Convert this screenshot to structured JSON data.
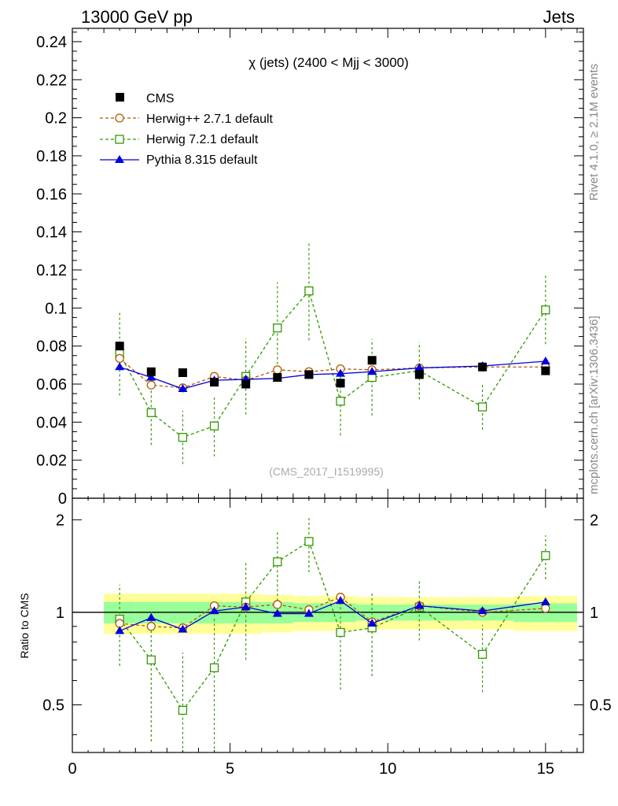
{
  "header": {
    "left": "13000 GeV pp",
    "right": "Jets"
  },
  "side_labels": {
    "rivet": "Rivet 4.1.0, ≥ 2.1M events",
    "mcplots": "mcplots.cern.ch [arXiv:1306.3436]"
  },
  "watermark": "(CMS_2017_I1519995)",
  "colors": {
    "cms": "#000000",
    "herwigpp": "#b35900",
    "herwig7": "#339900",
    "pythia": "#0000dd",
    "band_inner": "#99ff99",
    "band_outer": "#ffff99"
  },
  "chart_data": [
    {
      "type": "scatter",
      "title": "χ (jets) (2400 < Mjj < 3000)",
      "xlabel": "",
      "ylabel": "",
      "xlim": [
        0,
        16.2
      ],
      "ylim": [
        0,
        0.247
      ],
      "yticks": [
        0,
        0.02,
        0.04,
        0.06,
        0.08,
        0.1,
        0.12,
        0.14,
        0.16,
        0.18,
        0.2,
        0.22,
        0.24
      ],
      "ytick_labels": [
        "0",
        "0.02",
        "0.04",
        "0.06",
        "0.08",
        "0.1",
        "0.12",
        "0.14",
        "0.16",
        "0.18",
        "0.2",
        "0.22",
        "0.24"
      ],
      "x": [
        1.5,
        2.5,
        3.5,
        4.5,
        5.5,
        6.5,
        7.5,
        8.5,
        9.5,
        11,
        13,
        15
      ],
      "series": [
        {
          "name": "CMS",
          "key": "cms",
          "marker": "filled-square",
          "values": [
            0.08,
            0.0665,
            0.066,
            0.061,
            0.06,
            0.0635,
            0.065,
            0.0605,
            0.0725,
            0.065,
            0.069,
            0.067
          ]
        },
        {
          "name": "Herwig++ 2.7.1 default",
          "key": "herwigpp",
          "marker": "open-circle",
          "values": [
            0.0735,
            0.0595,
            0.058,
            0.064,
            0.062,
            0.0675,
            0.0665,
            0.068,
            0.0675,
            0.0685,
            0.069,
            0.069
          ]
        },
        {
          "name": "Herwig 7.2.1 default",
          "key": "herwig7",
          "marker": "open-square",
          "values": [
            0.076,
            0.045,
            0.032,
            0.038,
            0.064,
            0.0895,
            0.109,
            0.051,
            0.0635,
            0.067,
            0.048,
            0.099
          ],
          "errors": [
            0.022,
            0.017,
            0.014,
            0.016,
            0.02,
            0.024,
            0.026,
            0.018,
            0.02,
            0.015,
            0.012,
            0.018
          ]
        },
        {
          "name": "Pythia 8.315 default",
          "key": "pythia",
          "marker": "filled-triangle",
          "values": [
            0.069,
            0.0635,
            0.0575,
            0.062,
            0.0625,
            0.063,
            0.065,
            0.0655,
            0.0665,
            0.0685,
            0.0695,
            0.072
          ]
        }
      ]
    },
    {
      "type": "scatter",
      "title": "",
      "xlabel": "",
      "ylabel": "Ratio to CMS",
      "yscale": "log",
      "xlim": [
        0,
        16.2
      ],
      "ylim": [
        0.35,
        2.35
      ],
      "xticks": [
        0,
        5,
        10,
        15
      ],
      "xtick_labels": [
        "0",
        "5",
        "10",
        "15"
      ],
      "yticks": [
        0.5,
        1,
        2
      ],
      "ytick_labels": [
        "0.5",
        "1",
        "2"
      ],
      "x": [
        1.5,
        2.5,
        3.5,
        4.5,
        5.5,
        6.5,
        7.5,
        8.5,
        9.5,
        11,
        13,
        15
      ],
      "bins": [
        [
          1,
          2
        ],
        [
          2,
          3
        ],
        [
          3,
          4
        ],
        [
          4,
          5
        ],
        [
          5,
          6
        ],
        [
          6,
          7
        ],
        [
          7,
          8
        ],
        [
          8,
          9
        ],
        [
          9,
          10
        ],
        [
          10,
          12
        ],
        [
          12,
          14
        ],
        [
          14,
          16
        ]
      ],
      "band_inner": [
        0.08,
        0.08,
        0.08,
        0.08,
        0.08,
        0.08,
        0.07,
        0.07,
        0.06,
        0.06,
        0.06,
        0.07
      ],
      "band_outer": [
        0.15,
        0.15,
        0.15,
        0.15,
        0.15,
        0.14,
        0.13,
        0.13,
        0.12,
        0.12,
        0.12,
        0.13
      ],
      "series": [
        {
          "name": "Herwig++ 2.7.1 default",
          "key": "herwigpp",
          "marker": "open-circle",
          "values": [
            0.92,
            0.9,
            0.89,
            1.05,
            1.04,
            1.06,
            1.02,
            1.12,
            0.93,
            1.05,
            1.0,
            1.03
          ]
        },
        {
          "name": "Herwig 7.2.1 default",
          "key": "herwig7",
          "marker": "open-square",
          "values": [
            0.95,
            0.7,
            0.48,
            0.66,
            1.08,
            1.46,
            1.7,
            0.86,
            0.89,
            1.04,
            0.73,
            1.53
          ],
          "errors": [
            0.28,
            0.32,
            0.26,
            0.3,
            0.38,
            0.37,
            0.35,
            0.3,
            0.27,
            0.23,
            0.18,
            0.25
          ]
        },
        {
          "name": "Pythia 8.315 default",
          "key": "pythia",
          "marker": "filled-triangle",
          "values": [
            0.87,
            0.96,
            0.88,
            1.01,
            1.04,
            0.99,
            0.99,
            1.09,
            0.92,
            1.05,
            1.01,
            1.08
          ]
        }
      ]
    }
  ]
}
